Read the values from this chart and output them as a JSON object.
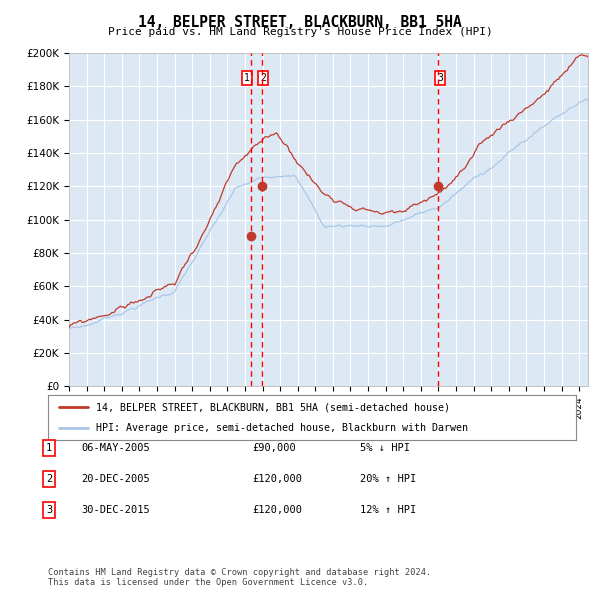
{
  "title": "14, BELPER STREET, BLACKBURN, BB1 5HA",
  "subtitle": "Price paid vs. HM Land Registry's House Price Index (HPI)",
  "background_color": "#dce9f5",
  "plot_bg_color": "#dce9f5",
  "red_line_label": "14, BELPER STREET, BLACKBURN, BB1 5HA (semi-detached house)",
  "blue_line_label": "HPI: Average price, semi-detached house, Blackburn with Darwen",
  "transactions": [
    {
      "label": "1",
      "date": "06-MAY-2005",
      "price": "£90,000",
      "pct": "5%",
      "dir": "↓",
      "x_year": 2005.35
    },
    {
      "label": "2",
      "date": "20-DEC-2005",
      "price": "£120,000",
      "pct": "20%",
      "dir": "↑",
      "x_year": 2005.97
    },
    {
      "label": "3",
      "date": "30-DEC-2015",
      "price": "£120,000",
      "pct": "12%",
      "dir": "↑",
      "x_year": 2015.99
    }
  ],
  "dot1_y": 90000,
  "dot2_y": 120000,
  "dot3_y": 120000,
  "ylim": [
    0,
    200000
  ],
  "xlim_start": 1995,
  "xlim_end": 2024.5,
  "yticks": [
    0,
    20000,
    40000,
    60000,
    80000,
    100000,
    120000,
    140000,
    160000,
    180000,
    200000
  ],
  "ylabels": [
    "£0",
    "£20K",
    "£40K",
    "£60K",
    "£80K",
    "£100K",
    "£120K",
    "£140K",
    "£160K",
    "£180K",
    "£200K"
  ],
  "footer": "Contains HM Land Registry data © Crown copyright and database right 2024.\nThis data is licensed under the Open Government Licence v3.0.",
  "grid_color": "white",
  "spine_color": "#aaaaaa"
}
